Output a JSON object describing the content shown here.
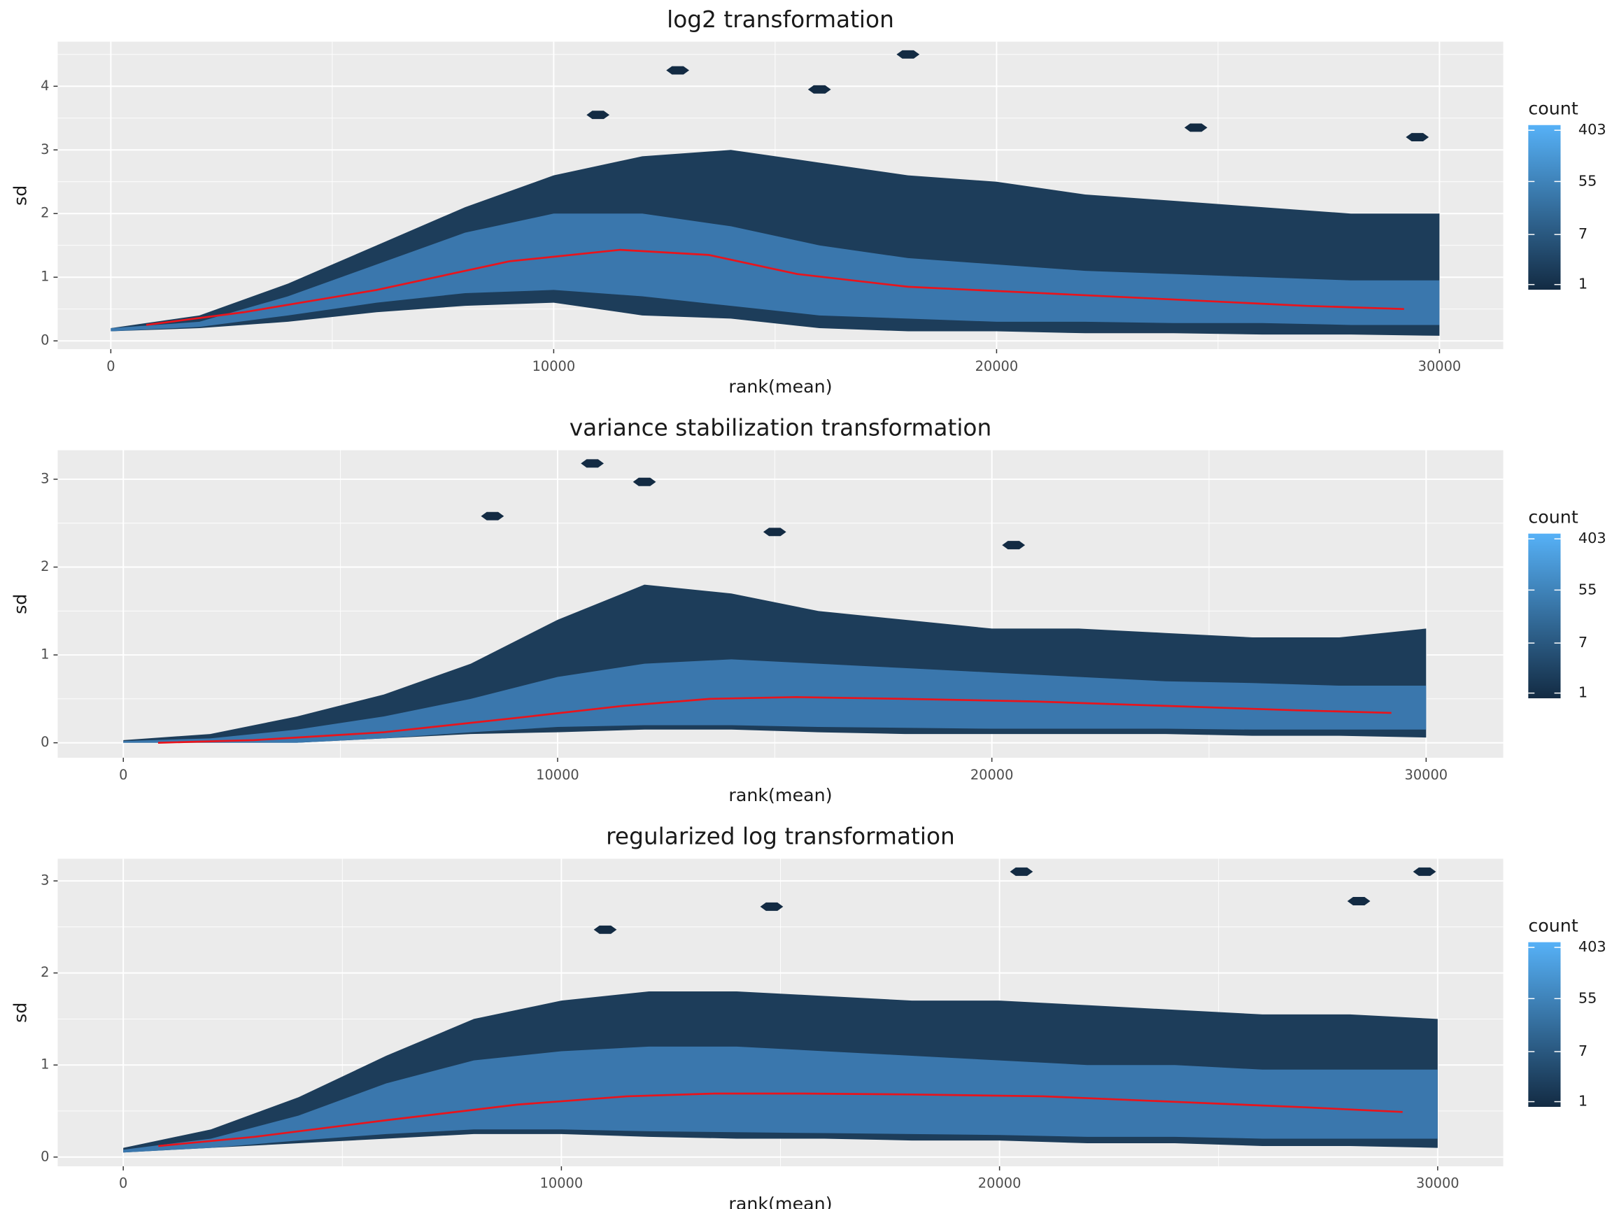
{
  "chart_data": [
    {
      "type": "hexbin",
      "title": "log2 transformation",
      "x_label": "rank(mean)",
      "y_label": "sd",
      "xlim": [
        -1200,
        31440
      ],
      "ylim": [
        -0.13,
        4.7
      ],
      "xticks": [
        0,
        10000,
        20000,
        30000
      ],
      "yticks": [
        0,
        1,
        2,
        3,
        4
      ],
      "xminor": [
        5000,
        15000,
        25000
      ],
      "yminor": [
        0.5,
        1.5,
        2.5,
        3.5,
        4.5
      ],
      "grid": true,
      "outer_band": {
        "color": "#1d3d5a",
        "x": [
          0,
          2000,
          4000,
          6000,
          8000,
          10000,
          12000,
          14000,
          16000,
          18000,
          20000,
          22000,
          24000,
          26000,
          28000,
          30000
        ],
        "lower": [
          0.15,
          0.2,
          0.3,
          0.45,
          0.55,
          0.6,
          0.4,
          0.35,
          0.2,
          0.15,
          0.15,
          0.12,
          0.12,
          0.1,
          0.1,
          0.08
        ],
        "upper": [
          0.2,
          0.4,
          0.9,
          1.5,
          2.1,
          2.6,
          2.9,
          3.0,
          2.8,
          2.6,
          2.5,
          2.3,
          2.2,
          2.1,
          2.0,
          2.0
        ]
      },
      "core_band": {
        "color": "#3a77ad",
        "x": [
          0,
          2000,
          4000,
          6000,
          8000,
          10000,
          12000,
          14000,
          16000,
          18000,
          20000,
          22000,
          24000,
          26000,
          28000,
          30000
        ],
        "lower": [
          0.15,
          0.22,
          0.4,
          0.6,
          0.75,
          0.8,
          0.7,
          0.55,
          0.4,
          0.35,
          0.3,
          0.3,
          0.28,
          0.28,
          0.25,
          0.25
        ],
        "upper": [
          0.2,
          0.3,
          0.7,
          1.2,
          1.7,
          2.0,
          2.0,
          1.8,
          1.5,
          1.3,
          1.2,
          1.1,
          1.05,
          1.0,
          0.95,
          0.95
        ]
      },
      "outliers": {
        "color": "#132b43",
        "x": [
          12800,
          18000,
          16000,
          24500,
          29500,
          11000
        ],
        "y": [
          4.25,
          4.5,
          3.95,
          3.35,
          3.2,
          3.55
        ]
      },
      "trend": {
        "color": "#e8141c",
        "x": [
          800,
          3000,
          6000,
          9000,
          11500,
          13500,
          15500,
          18000,
          21000,
          24000,
          27000,
          29200
        ],
        "y": [
          0.25,
          0.45,
          0.8,
          1.25,
          1.43,
          1.35,
          1.05,
          0.85,
          0.75,
          0.65,
          0.55,
          0.5
        ]
      },
      "legend": {
        "title": "count",
        "ticks": [
          1,
          7,
          55,
          403
        ],
        "log": true,
        "low": "#132b43",
        "high": "#56b1f7"
      }
    },
    {
      "type": "hexbin",
      "title": "variance stabilization transformation",
      "x_label": "rank(mean)",
      "y_label": "sd",
      "xlim": [
        -1512,
        31776
      ],
      "ylim": [
        -0.17,
        3.33
      ],
      "xticks": [
        0,
        10000,
        20000,
        30000
      ],
      "yticks": [
        0,
        1,
        2,
        3
      ],
      "xminor": [
        5000,
        15000,
        25000
      ],
      "yminor": [
        0.5,
        1.5,
        2.5
      ],
      "grid": true,
      "outer_band": {
        "color": "#1d3d5a",
        "x": [
          0,
          2000,
          4000,
          6000,
          8000,
          10000,
          12000,
          14000,
          16000,
          18000,
          20000,
          22000,
          24000,
          26000,
          28000,
          30000
        ],
        "lower": [
          0,
          0,
          0,
          0.05,
          0.1,
          0.12,
          0.15,
          0.15,
          0.12,
          0.1,
          0.1,
          0.1,
          0.1,
          0.08,
          0.08,
          0.06
        ],
        "upper": [
          0.03,
          0.1,
          0.3,
          0.55,
          0.9,
          1.4,
          1.8,
          1.7,
          1.5,
          1.4,
          1.3,
          1.3,
          1.25,
          1.2,
          1.2,
          1.3
        ]
      },
      "core_band": {
        "color": "#3a77ad",
        "x": [
          0,
          2000,
          4000,
          6000,
          8000,
          10000,
          12000,
          14000,
          16000,
          18000,
          20000,
          22000,
          24000,
          26000,
          28000,
          30000
        ],
        "lower": [
          0,
          0,
          0,
          0.05,
          0.12,
          0.18,
          0.2,
          0.2,
          0.18,
          0.17,
          0.16,
          0.16,
          0.16,
          0.15,
          0.15,
          0.15
        ],
        "upper": [
          0.02,
          0.05,
          0.15,
          0.3,
          0.5,
          0.75,
          0.9,
          0.95,
          0.9,
          0.85,
          0.8,
          0.75,
          0.7,
          0.68,
          0.65,
          0.65
        ]
      },
      "outliers": {
        "color": "#132b43",
        "x": [
          10800,
          12000,
          20500,
          15000,
          8500
        ],
        "y": [
          3.18,
          2.97,
          2.25,
          2.4,
          2.58
        ]
      },
      "trend": {
        "color": "#e8141c",
        "x": [
          800,
          3000,
          6000,
          9000,
          11500,
          13500,
          15500,
          18000,
          21000,
          24000,
          27000,
          29200
        ],
        "y": [
          0.0,
          0.03,
          0.12,
          0.28,
          0.42,
          0.5,
          0.52,
          0.5,
          0.47,
          0.42,
          0.37,
          0.34
        ]
      },
      "legend": {
        "title": "count",
        "ticks": [
          1,
          7,
          55,
          403
        ],
        "log": true,
        "low": "#132b43",
        "high": "#56b1f7"
      }
    },
    {
      "type": "hexbin",
      "title": "regularized log transformation",
      "x_label": "rank(mean)",
      "y_label": "sd",
      "xlim": [
        -1497,
        31497
      ],
      "ylim": [
        -0.1,
        3.24
      ],
      "xticks": [
        0,
        10000,
        20000,
        30000
      ],
      "yticks": [
        0,
        1,
        2,
        3
      ],
      "xminor": [
        5000,
        15000,
        25000
      ],
      "yminor": [
        0.5,
        1.5,
        2.5
      ],
      "grid": true,
      "outer_band": {
        "color": "#1d3d5a",
        "x": [
          0,
          2000,
          4000,
          6000,
          8000,
          10000,
          12000,
          14000,
          16000,
          18000,
          20000,
          22000,
          24000,
          26000,
          28000,
          30000
        ],
        "lower": [
          0.05,
          0.1,
          0.15,
          0.2,
          0.25,
          0.25,
          0.22,
          0.2,
          0.2,
          0.18,
          0.18,
          0.15,
          0.15,
          0.12,
          0.12,
          0.1
        ],
        "upper": [
          0.1,
          0.3,
          0.65,
          1.1,
          1.5,
          1.7,
          1.8,
          1.8,
          1.75,
          1.7,
          1.7,
          1.65,
          1.6,
          1.55,
          1.55,
          1.5
        ]
      },
      "core_band": {
        "color": "#3a77ad",
        "x": [
          0,
          2000,
          4000,
          6000,
          8000,
          10000,
          12000,
          14000,
          16000,
          18000,
          20000,
          22000,
          24000,
          26000,
          28000,
          30000
        ],
        "lower": [
          0.05,
          0.1,
          0.18,
          0.25,
          0.3,
          0.3,
          0.28,
          0.27,
          0.26,
          0.25,
          0.24,
          0.22,
          0.22,
          0.2,
          0.2,
          0.2
        ],
        "upper": [
          0.08,
          0.2,
          0.45,
          0.8,
          1.05,
          1.15,
          1.2,
          1.2,
          1.15,
          1.1,
          1.05,
          1.0,
          1.0,
          0.95,
          0.95,
          0.95
        ]
      },
      "outliers": {
        "color": "#132b43",
        "x": [
          20500,
          29700,
          14800,
          28200,
          11000
        ],
        "y": [
          3.1,
          3.1,
          2.72,
          2.78,
          2.47
        ]
      },
      "trend": {
        "color": "#e8141c",
        "x": [
          800,
          3000,
          6000,
          9000,
          11500,
          13500,
          15500,
          18000,
          21000,
          24000,
          27000,
          29200
        ],
        "y": [
          0.12,
          0.22,
          0.4,
          0.57,
          0.66,
          0.69,
          0.69,
          0.68,
          0.66,
          0.6,
          0.54,
          0.49
        ]
      },
      "legend": {
        "title": "count",
        "ticks": [
          1,
          7,
          55,
          403
        ],
        "log": true,
        "low": "#132b43",
        "high": "#56b1f7"
      }
    }
  ]
}
